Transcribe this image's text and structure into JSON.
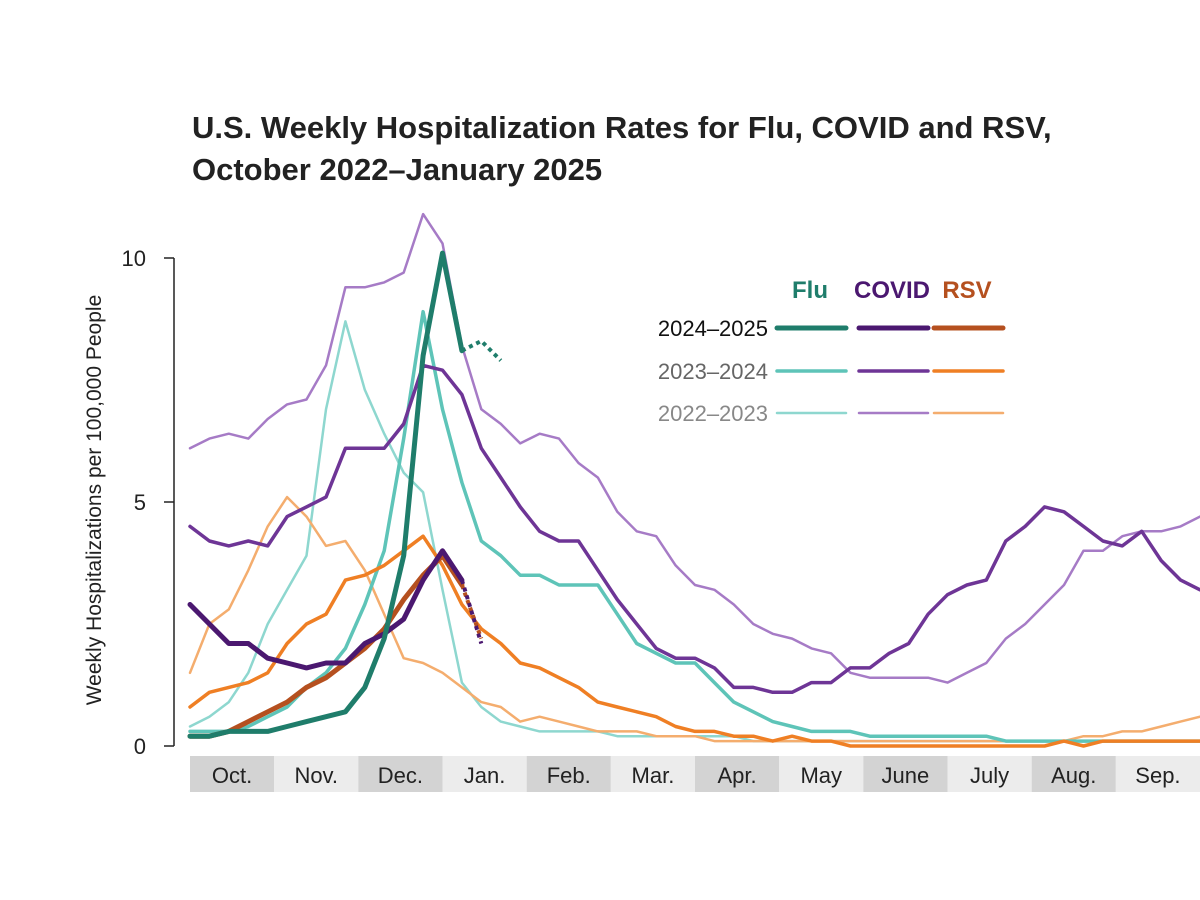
{
  "chart_data": {
    "type": "line",
    "title_lines": [
      "U.S. Weekly Hospitalization Rates for Flu, COVID and RSV,",
      "October 2022–January 2025"
    ],
    "ylabel": "Weekly Hospitalizations per 100,000 People",
    "ylim": [
      0,
      10
    ],
    "yticks": [
      "10",
      "5",
      "0"
    ],
    "x_unit": "weeks since start of October",
    "xlim": [
      0,
      52
    ],
    "months": [
      "Oct.",
      "Nov.",
      "Dec.",
      "Jan.",
      "Feb.",
      "Mar.",
      "Apr.",
      "May",
      "June",
      "July",
      "Aug.",
      "Sep."
    ],
    "legend": {
      "diseases": [
        {
          "label": "Flu",
          "color": "#1f7d6b"
        },
        {
          "label": "COVID",
          "color": "#4b1870"
        },
        {
          "label": "RSV",
          "color": "#b5501f"
        }
      ],
      "seasons": [
        {
          "label": "2024–2025",
          "color": "#111111"
        },
        {
          "label": "2023–2024",
          "color": "#666666"
        },
        {
          "label": "2022–2023",
          "color": "#888888"
        }
      ]
    },
    "series": [
      {
        "name": "Flu 2022–2023",
        "disease": "Flu",
        "season": "2022–2023",
        "color": "#8ed7cf",
        "width": 2.5,
        "x": [
          0,
          1,
          2,
          3,
          4,
          5,
          6,
          7,
          8,
          9,
          10,
          11,
          12,
          13,
          14,
          15,
          16,
          17,
          18,
          19,
          20,
          21,
          22,
          23,
          24,
          25,
          26,
          27,
          28,
          29,
          30,
          31,
          32,
          33,
          34,
          35,
          36,
          37,
          38,
          39,
          40,
          41,
          42,
          43,
          44,
          45,
          46,
          47,
          48,
          49,
          50,
          51,
          52
        ],
        "y": [
          0.4,
          0.6,
          0.9,
          1.5,
          2.5,
          3.2,
          3.9,
          6.9,
          8.7,
          7.3,
          6.4,
          5.6,
          5.2,
          3.2,
          1.3,
          0.8,
          0.5,
          0.4,
          0.3,
          0.3,
          0.3,
          0.3,
          0.2,
          0.2,
          0.2,
          0.2,
          0.2,
          0.2,
          0.2,
          0.1,
          0.1,
          0.1,
          0.1,
          0.1,
          0.1,
          0.1,
          0.1,
          0.1,
          0.1,
          0.1,
          0.1,
          0.1,
          0.1,
          0.1,
          0.1,
          0.1,
          0.1,
          0.1,
          0.1,
          0.1,
          0.1,
          0.1,
          0.1
        ]
      },
      {
        "name": "COVID 2022–2023",
        "disease": "COVID",
        "season": "2022–2023",
        "color": "#a67bc6",
        "width": 2.5,
        "x": [
          0,
          1,
          2,
          3,
          4,
          5,
          6,
          7,
          8,
          9,
          10,
          11,
          12,
          13,
          14,
          15,
          16,
          17,
          18,
          19,
          20,
          21,
          22,
          23,
          24,
          25,
          26,
          27,
          28,
          29,
          30,
          31,
          32,
          33,
          34,
          35,
          36,
          37,
          38,
          39,
          40,
          41,
          42,
          43,
          44,
          45,
          46,
          47,
          48,
          49,
          50,
          51,
          52
        ],
        "y": [
          6.1,
          6.3,
          6.4,
          6.3,
          6.7,
          7.0,
          7.1,
          7.8,
          9.4,
          9.4,
          9.5,
          9.7,
          10.9,
          10.3,
          8.2,
          6.9,
          6.6,
          6.2,
          6.4,
          6.3,
          5.8,
          5.5,
          4.8,
          4.4,
          4.3,
          3.7,
          3.3,
          3.2,
          2.9,
          2.5,
          2.3,
          2.2,
          2.0,
          1.9,
          1.5,
          1.4,
          1.4,
          1.4,
          1.4,
          1.3,
          1.5,
          1.7,
          2.2,
          2.5,
          2.9,
          3.3,
          4.0,
          4.0,
          4.3,
          4.4,
          4.4,
          4.5,
          4.7
        ]
      },
      {
        "name": "RSV 2022–2023",
        "disease": "RSV",
        "season": "2022–2023",
        "color": "#f4ad6e",
        "width": 2.5,
        "x": [
          0,
          1,
          2,
          3,
          4,
          5,
          6,
          7,
          8,
          9,
          10,
          11,
          12,
          13,
          14,
          15,
          16,
          17,
          18,
          19,
          20,
          21,
          22,
          23,
          24,
          25,
          26,
          27,
          28,
          29,
          30,
          31,
          32,
          33,
          34,
          35,
          36,
          37,
          38,
          39,
          40,
          41,
          42,
          43,
          44,
          45,
          46,
          47,
          48,
          49,
          50,
          51,
          52
        ],
        "y": [
          1.5,
          2.5,
          2.8,
          3.6,
          4.5,
          5.1,
          4.7,
          4.1,
          4.2,
          3.6,
          2.7,
          1.8,
          1.7,
          1.5,
          1.2,
          0.9,
          0.8,
          0.5,
          0.6,
          0.5,
          0.4,
          0.3,
          0.3,
          0.3,
          0.2,
          0.2,
          0.2,
          0.1,
          0.1,
          0.1,
          0.1,
          0.1,
          0.1,
          0.1,
          0.1,
          0.1,
          0.1,
          0.1,
          0.1,
          0.1,
          0.1,
          0.1,
          0.1,
          0.1,
          0.1,
          0.1,
          0.2,
          0.2,
          0.3,
          0.3,
          0.4,
          0.5,
          0.6
        ]
      },
      {
        "name": "Flu 2023–2024",
        "disease": "Flu",
        "season": "2023–2024",
        "color": "#5ec4b8",
        "width": 3.5,
        "x": [
          0,
          1,
          2,
          3,
          4,
          5,
          6,
          7,
          8,
          9,
          10,
          11,
          12,
          13,
          14,
          15,
          16,
          17,
          18,
          19,
          20,
          21,
          22,
          23,
          24,
          25,
          26,
          27,
          28,
          29,
          30,
          31,
          32,
          33,
          34,
          35,
          36,
          37,
          38,
          39,
          40,
          41,
          42,
          43,
          44,
          45,
          46,
          47,
          48,
          49,
          50,
          51,
          52
        ],
        "y": [
          0.3,
          0.3,
          0.3,
          0.4,
          0.6,
          0.8,
          1.2,
          1.5,
          2.0,
          2.9,
          4.0,
          6.3,
          8.9,
          6.9,
          5.4,
          4.2,
          3.9,
          3.5,
          3.5,
          3.3,
          3.3,
          3.3,
          2.7,
          2.1,
          1.9,
          1.7,
          1.7,
          1.3,
          0.9,
          0.7,
          0.5,
          0.4,
          0.3,
          0.3,
          0.3,
          0.2,
          0.2,
          0.2,
          0.2,
          0.2,
          0.2,
          0.2,
          0.1,
          0.1,
          0.1,
          0.1,
          0.1,
          0.1,
          0.1,
          0.1,
          0.1,
          0.1,
          0.1
        ]
      },
      {
        "name": "COVID 2023–2024",
        "disease": "COVID",
        "season": "2023–2024",
        "color": "#6e3596",
        "width": 3.5,
        "x": [
          0,
          1,
          2,
          3,
          4,
          5,
          6,
          7,
          8,
          9,
          10,
          11,
          12,
          13,
          14,
          15,
          16,
          17,
          18,
          19,
          20,
          21,
          22,
          23,
          24,
          25,
          26,
          27,
          28,
          29,
          30,
          31,
          32,
          33,
          34,
          35,
          36,
          37,
          38,
          39,
          40,
          41,
          42,
          43,
          44,
          45,
          46,
          47,
          48,
          49,
          50,
          51,
          52
        ],
        "y": [
          4.5,
          4.2,
          4.1,
          4.2,
          4.1,
          4.7,
          4.9,
          5.1,
          6.1,
          6.1,
          6.1,
          6.6,
          7.8,
          7.7,
          7.2,
          6.1,
          5.5,
          4.9,
          4.4,
          4.2,
          4.2,
          3.6,
          3.0,
          2.5,
          2.0,
          1.8,
          1.8,
          1.6,
          1.2,
          1.2,
          1.1,
          1.1,
          1.3,
          1.3,
          1.6,
          1.6,
          1.9,
          2.1,
          2.7,
          3.1,
          3.3,
          3.4,
          4.2,
          4.5,
          4.9,
          4.8,
          4.5,
          4.2,
          4.1,
          4.4,
          3.8,
          3.4,
          3.2
        ]
      },
      {
        "name": "RSV 2023–2024",
        "disease": "RSV",
        "season": "2023–2024",
        "color": "#ef7f24",
        "width": 3.5,
        "x": [
          0,
          1,
          2,
          3,
          4,
          5,
          6,
          7,
          8,
          9,
          10,
          11,
          12,
          13,
          14,
          15,
          16,
          17,
          18,
          19,
          20,
          21,
          22,
          23,
          24,
          25,
          26,
          27,
          28,
          29,
          30,
          31,
          32,
          33,
          34,
          35,
          36,
          37,
          38,
          39,
          40,
          41,
          42,
          43,
          44,
          45,
          46,
          47,
          48,
          49,
          50,
          51,
          52
        ],
        "y": [
          0.8,
          1.1,
          1.2,
          1.3,
          1.5,
          2.1,
          2.5,
          2.7,
          3.4,
          3.5,
          3.7,
          4.0,
          4.3,
          3.7,
          2.9,
          2.4,
          2.1,
          1.7,
          1.6,
          1.4,
          1.2,
          0.9,
          0.8,
          0.7,
          0.6,
          0.4,
          0.3,
          0.3,
          0.2,
          0.2,
          0.1,
          0.2,
          0.1,
          0.1,
          0.0,
          0.0,
          0.0,
          0.0,
          0.0,
          0.0,
          0.0,
          0.0,
          0.0,
          0.0,
          0.0,
          0.1,
          0.0,
          0.1,
          0.1,
          0.1,
          0.1,
          0.1,
          0.1
        ]
      },
      {
        "name": "RSV 2024–2025",
        "disease": "RSV",
        "season": "2024–2025",
        "color": "#b5501f",
        "width": 5,
        "x": [
          0,
          1,
          2,
          3,
          4,
          5,
          6,
          7,
          8,
          9,
          10,
          11,
          12,
          13,
          14
        ],
        "y": [
          0.2,
          0.2,
          0.3,
          0.5,
          0.7,
          0.9,
          1.2,
          1.4,
          1.7,
          2.0,
          2.4,
          3.0,
          3.5,
          3.9,
          3.3
        ],
        "prelim_x": [
          14,
          15
        ],
        "prelim_y": [
          3.3,
          2.2
        ]
      },
      {
        "name": "COVID 2024–2025",
        "disease": "COVID",
        "season": "2024–2025",
        "color": "#4b1870",
        "width": 5,
        "x": [
          0,
          1,
          2,
          3,
          4,
          5,
          6,
          7,
          8,
          9,
          10,
          11,
          12,
          13,
          14
        ],
        "y": [
          2.9,
          2.5,
          2.1,
          2.1,
          1.8,
          1.7,
          1.6,
          1.7,
          1.7,
          2.1,
          2.3,
          2.6,
          3.4,
          4.0,
          3.4
        ],
        "prelim_x": [
          14,
          15
        ],
        "prelim_y": [
          3.4,
          2.1
        ]
      },
      {
        "name": "Flu 2024–2025",
        "disease": "Flu",
        "season": "2024–2025",
        "color": "#1f7d6b",
        "width": 5,
        "x": [
          0,
          1,
          2,
          3,
          4,
          5,
          6,
          7,
          8,
          9,
          10,
          11,
          12,
          13,
          14
        ],
        "y": [
          0.2,
          0.2,
          0.3,
          0.3,
          0.3,
          0.4,
          0.5,
          0.6,
          0.7,
          1.2,
          2.2,
          3.9,
          8.0,
          10.1,
          8.1
        ],
        "prelim_x": [
          14,
          15,
          16
        ],
        "prelim_y": [
          8.1,
          8.3,
          7.9
        ]
      }
    ]
  }
}
